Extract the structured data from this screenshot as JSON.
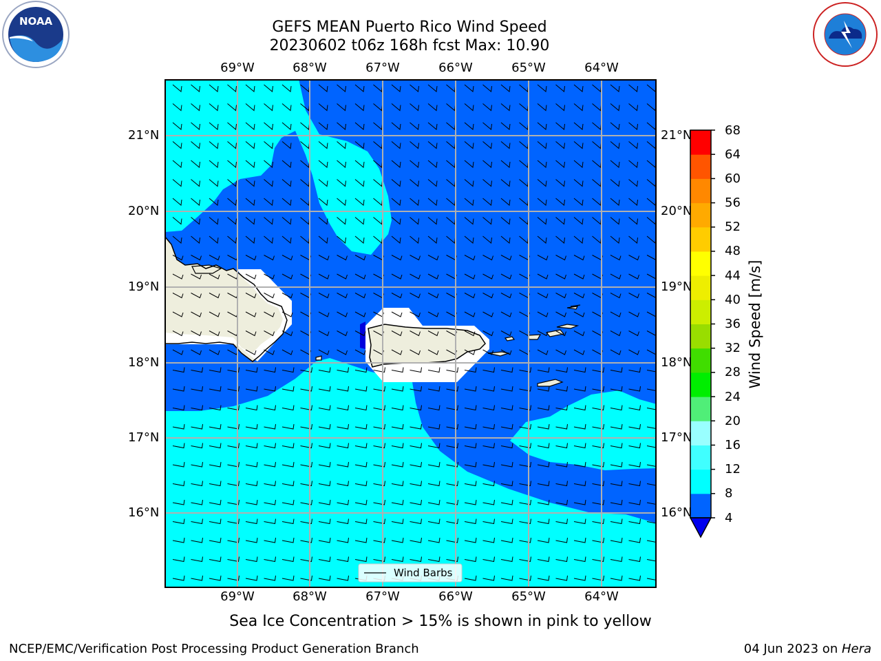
{
  "title_line1": "GEFS MEAN Puerto Rico Wind Speed",
  "title_line2": "20230602 t06z 168h fcst   Max: 10.90",
  "lon_labels": [
    "69°W",
    "68°W",
    "67°W",
    "66°W",
    "65°W",
    "64°W"
  ],
  "lat_labels": [
    "21°N",
    "20°N",
    "19°N",
    "18°N",
    "17°N",
    "16°N"
  ],
  "legend_label": "Wind Barbs",
  "colorbar": {
    "label": "Wind Speed [m/s]",
    "ticks": [
      "4",
      "8",
      "12",
      "16",
      "20",
      "24",
      "28",
      "32",
      "36",
      "40",
      "44",
      "48",
      "52",
      "56",
      "60",
      "64",
      "68"
    ],
    "colors": [
      "#0064ff",
      "#00ffff",
      "#40ffff",
      "#99ffff",
      "#50ee78",
      "#00ee00",
      "#40dd00",
      "#99dd00",
      "#ccee00",
      "#eeee00",
      "#ffff00",
      "#ffcc00",
      "#ffaa00",
      "#ff8800",
      "#ff5500",
      "#ff2200",
      "#ff0000"
    ],
    "under_color": "#0000ee"
  },
  "map_colors": {
    "speed_4_8": "#0064ff",
    "speed_8_12": "#00ffff",
    "speed_below_4": "#0000dd",
    "land": "#eeeedd"
  },
  "subtitle": "Sea Ice Concentration > 15% is shown in pink to yellow",
  "footer_left": "NCEP/EMC/Verification Post Processing Product Generation Branch",
  "footer_right_prefix": "04 Jun 2023 on ",
  "footer_right_host": "Hera",
  "logos": {
    "left": "NOAA",
    "right": "NATIONAL WEATHER SERVICE"
  }
}
